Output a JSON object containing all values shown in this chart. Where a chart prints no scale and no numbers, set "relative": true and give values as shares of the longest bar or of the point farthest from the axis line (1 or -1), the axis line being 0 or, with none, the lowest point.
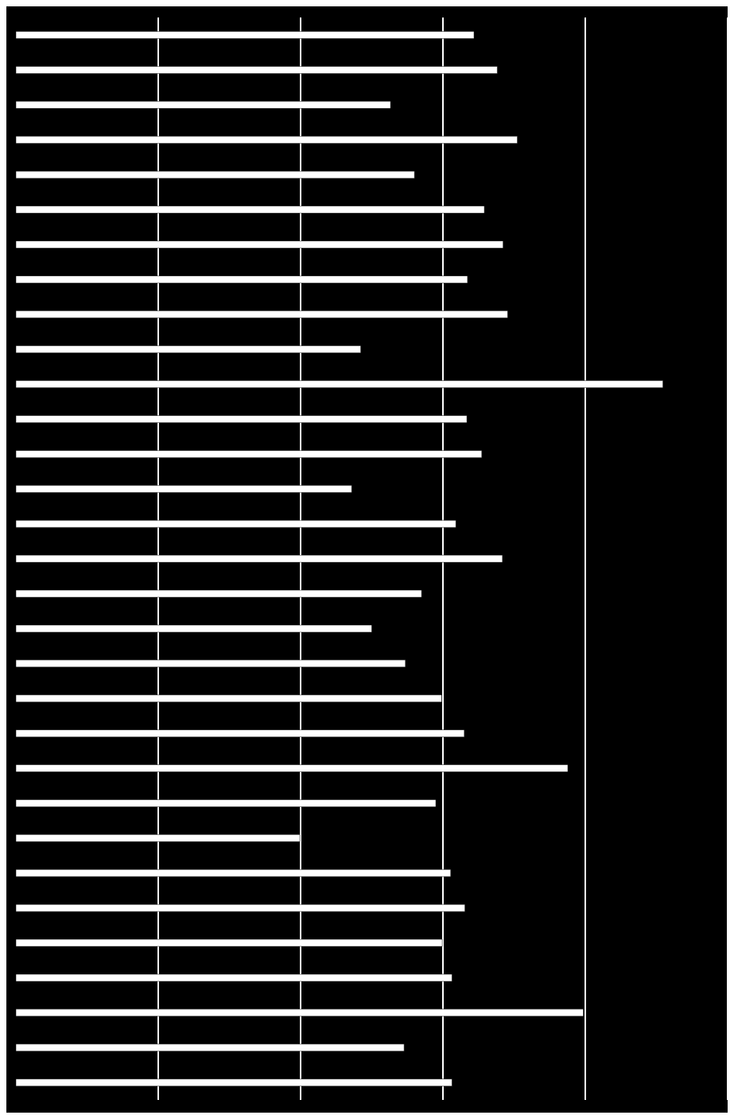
{
  "chart_data": {
    "type": "bar",
    "orientation": "horizontal",
    "relative": true,
    "grid": "x",
    "color": "#ffffff",
    "categories": [
      null,
      null,
      null,
      null,
      null,
      null,
      null,
      null,
      null,
      null,
      null,
      null,
      null,
      null,
      null,
      null,
      null,
      null,
      null,
      null,
      null,
      null,
      null,
      null,
      null,
      null,
      null,
      null,
      null,
      null,
      null
    ],
    "values": [
      0.708,
      0.744,
      0.579,
      0.775,
      0.616,
      0.724,
      0.753,
      0.698,
      0.76,
      0.533,
      1,
      0.697,
      0.72,
      0.519,
      0.68,
      0.752,
      0.627,
      0.55,
      0.602,
      0.658,
      0.693,
      0.853,
      0.649,
      0.439,
      0.672,
      0.694,
      0.659,
      0.674,
      0.877,
      0.6,
      0.674
    ]
  }
}
